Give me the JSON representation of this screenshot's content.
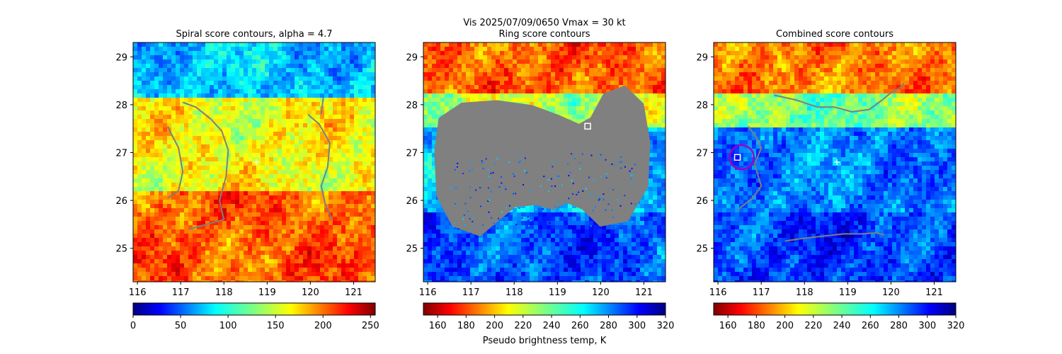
{
  "suptitle": "Vis  2025/07/09/0650    Vmax = 30 kt",
  "chart_data": [
    {
      "type": "heatmap",
      "title": "Spiral score contours, alpha =  4.7",
      "xlim": [
        115.9,
        121.5
      ],
      "ylim": [
        24.3,
        29.3
      ],
      "xticks": [
        116,
        117,
        118,
        119,
        120,
        121
      ],
      "yticks": [
        25,
        26,
        27,
        28,
        29
      ],
      "colormap": "jet",
      "colorbar": {
        "range": [
          0,
          255
        ],
        "ticks": [
          0,
          50,
          100,
          150,
          200,
          250
        ],
        "label": ""
      },
      "center_marker": {
        "symbol": "+",
        "lon": 118.75,
        "lat": 26.8
      },
      "contours": [
        [
          [
            116.7,
            26.05
          ],
          [
            116.95,
            26.2
          ],
          [
            117.05,
            26.6
          ],
          [
            116.95,
            27.1
          ],
          [
            116.75,
            27.45
          ],
          [
            116.7,
            27.55
          ]
        ],
        [
          [
            117.2,
            25.4
          ],
          [
            117.6,
            25.5
          ],
          [
            118.0,
            25.6
          ],
          [
            117.9,
            26.0
          ],
          [
            118.05,
            26.5
          ],
          [
            118.1,
            27.05
          ],
          [
            117.95,
            27.45
          ],
          [
            117.7,
            27.7
          ],
          [
            117.35,
            27.95
          ],
          [
            117.05,
            28.05
          ]
        ],
        [
          [
            120.5,
            25.6
          ],
          [
            120.35,
            25.9
          ],
          [
            120.25,
            26.3
          ],
          [
            120.4,
            26.7
          ],
          [
            120.45,
            27.2
          ],
          [
            120.2,
            27.6
          ],
          [
            120.0,
            27.75
          ],
          [
            119.95,
            27.8
          ]
        ],
        [
          [
            120.25,
            27.8
          ],
          [
            120.3,
            28.15
          ]
        ]
      ]
    },
    {
      "type": "heatmap",
      "title": "Ring score contours",
      "xlim": [
        115.9,
        121.5
      ],
      "ylim": [
        24.3,
        29.3
      ],
      "xticks": [
        116,
        117,
        118,
        119,
        120,
        121
      ],
      "yticks": [
        25,
        26,
        27,
        28,
        29
      ],
      "colormap": "jet_r",
      "colorbar": {
        "range": [
          150,
          320
        ],
        "ticks": [
          160,
          180,
          200,
          220,
          240,
          260,
          280,
          300,
          320
        ],
        "label": "Pseudo brightness temp, K"
      },
      "marker": {
        "symbol": "square",
        "lon": 119.7,
        "lat": 27.55
      },
      "masked_region": "gray"
    },
    {
      "type": "heatmap",
      "title": "Combined score contours",
      "xlim": [
        115.9,
        121.5
      ],
      "ylim": [
        24.3,
        29.3
      ],
      "xticks": [
        116,
        117,
        118,
        119,
        120,
        121
      ],
      "yticks": [
        25,
        26,
        27,
        28,
        29
      ],
      "colormap": "jet_r",
      "colorbar": {
        "range": [
          150,
          320
        ],
        "ticks": [
          160,
          180,
          200,
          220,
          240,
          260,
          280,
          300,
          320
        ],
        "label": ""
      },
      "center_marker": {
        "symbol": "+",
        "lon": 118.75,
        "lat": 26.8
      },
      "marker": {
        "symbol": "square",
        "lon": 116.45,
        "lat": 26.9
      },
      "circle": {
        "lon": 116.55,
        "lat": 26.9,
        "radius_deg": 0.28
      },
      "contours": [
        [
          [
            117.3,
            28.2
          ],
          [
            117.8,
            28.1
          ],
          [
            118.3,
            27.95
          ],
          [
            118.7,
            27.95
          ],
          [
            119.1,
            27.85
          ],
          [
            119.5,
            27.9
          ],
          [
            119.8,
            28.1
          ],
          [
            120.0,
            28.25
          ],
          [
            120.2,
            28.35
          ],
          [
            120.3,
            28.45
          ]
        ],
        [
          [
            116.45,
            25.8
          ],
          [
            116.8,
            26.05
          ],
          [
            117.0,
            26.3
          ],
          [
            116.85,
            26.75
          ],
          [
            117.0,
            27.1
          ],
          [
            116.9,
            27.3
          ],
          [
            116.7,
            27.55
          ]
        ],
        [
          [
            117.55,
            25.15
          ],
          [
            117.9,
            25.2
          ],
          [
            118.4,
            25.25
          ],
          [
            118.9,
            25.3
          ],
          [
            119.3,
            25.3
          ],
          [
            119.65,
            25.32
          ],
          [
            119.85,
            25.28
          ]
        ]
      ]
    }
  ]
}
